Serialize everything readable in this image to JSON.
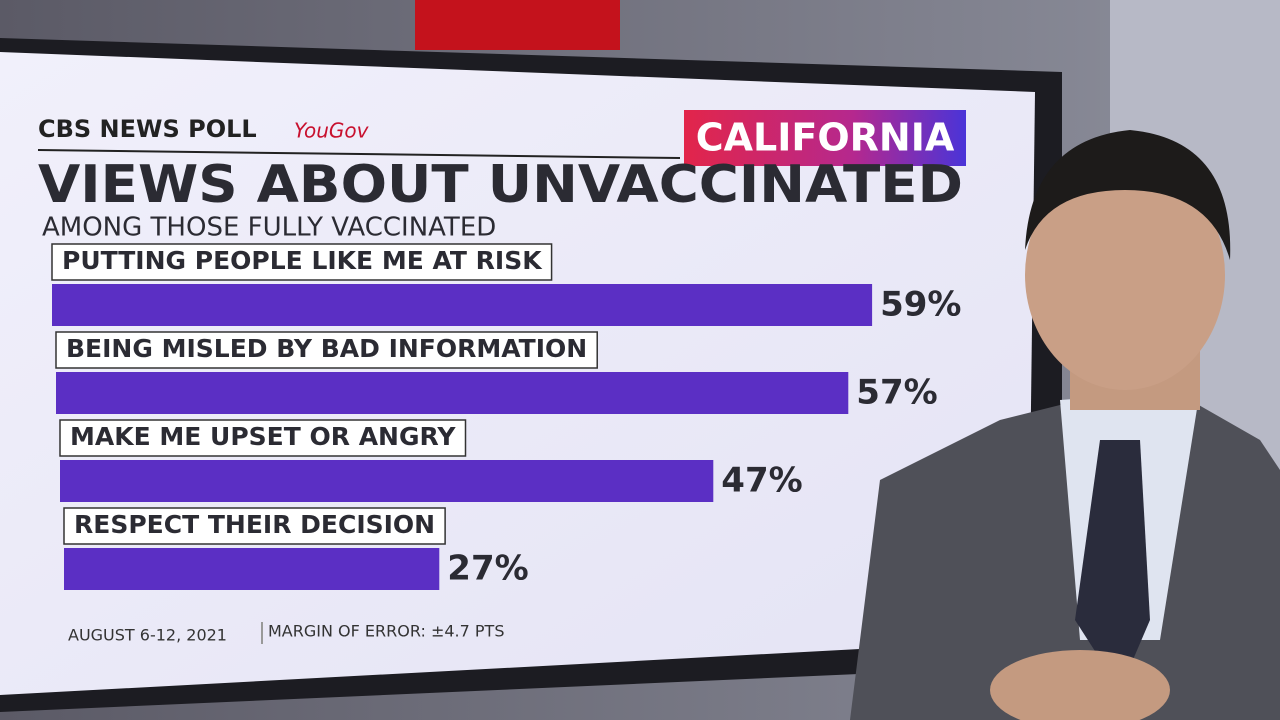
{
  "chart_data": {
    "type": "hbar",
    "source": "CBS NEWS POLL",
    "partner": "YouGov",
    "region": "CALIFORNIA",
    "title": "VIEWS ABOUT UNVACCINATED",
    "subtitle": "AMONG THOSE FULLY VACCINATED",
    "categories": [
      "PUTTING PEOPLE LIKE ME AT RISK",
      "BEING MISLED BY BAD INFORMATION",
      "MAKE ME UPSET OR ANGRY",
      "RESPECT THEIR DECISION"
    ],
    "values": [
      59,
      57,
      47,
      27
    ],
    "value_labels": [
      "59%",
      "57%",
      "47%",
      "27%"
    ],
    "color": "#5b2fc4",
    "footnote": [
      "AUGUST 6-12, 2021",
      "MARGIN OF ERROR: ±4.7 PTS"
    ]
  }
}
